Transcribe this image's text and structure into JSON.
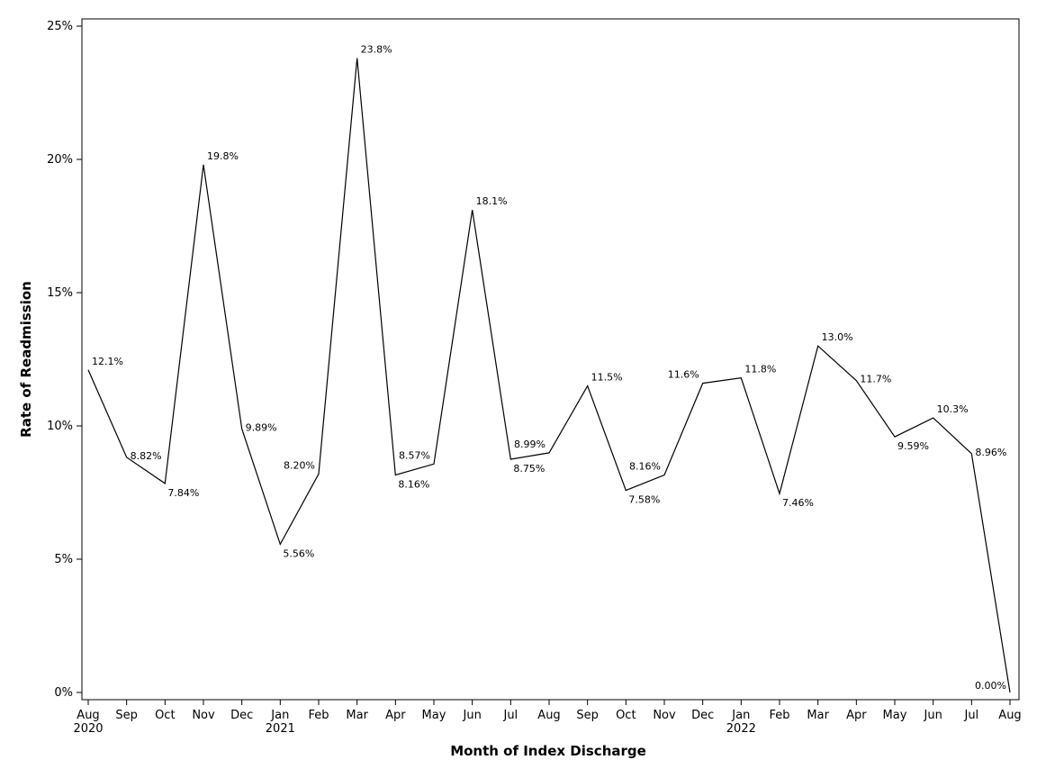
{
  "chart_data": {
    "type": "line",
    "xlabel": "Month of Index Discharge",
    "ylabel": "Rate of Readmission",
    "ylim": [
      0,
      25
    ],
    "yticks": [
      "0%",
      "5%",
      "10%",
      "15%",
      "20%",
      "25%"
    ],
    "grid": false,
    "categories": [
      "Aug",
      "Sep",
      "Oct",
      "Nov",
      "Dec",
      "Jan",
      "Feb",
      "Mar",
      "Apr",
      "May",
      "Jun",
      "Jul",
      "Aug",
      "Sep",
      "Oct",
      "Nov",
      "Dec",
      "Jan",
      "Feb",
      "Mar",
      "Apr",
      "May",
      "Jun",
      "Jul",
      "Aug"
    ],
    "year_labels": [
      {
        "index": 0,
        "label": "2020"
      },
      {
        "index": 5,
        "label": "2021"
      },
      {
        "index": 17,
        "label": "2022"
      }
    ],
    "series": [
      {
        "values": [
          12.1,
          8.82,
          7.84,
          19.8,
          9.89,
          5.56,
          8.2,
          23.8,
          8.16,
          8.57,
          18.1,
          8.75,
          8.99,
          11.5,
          7.58,
          8.16,
          11.6,
          11.8,
          7.46,
          13.0,
          11.7,
          9.59,
          10.3,
          8.96,
          0.0
        ],
        "labels": [
          "12.1%",
          "8.82%",
          "7.84%",
          "19.8%",
          "9.89%",
          "5.56%",
          "8.20%",
          "23.8%",
          "8.16%",
          "8.57%",
          "18.1%",
          "8.75%",
          "8.99%",
          "11.5%",
          "7.58%",
          "8.16%",
          "11.6%",
          "11.8%",
          "7.46%",
          "13.0%",
          "11.7%",
          "9.59%",
          "10.3%",
          "8.96%",
          "0.00%"
        ]
      }
    ]
  }
}
